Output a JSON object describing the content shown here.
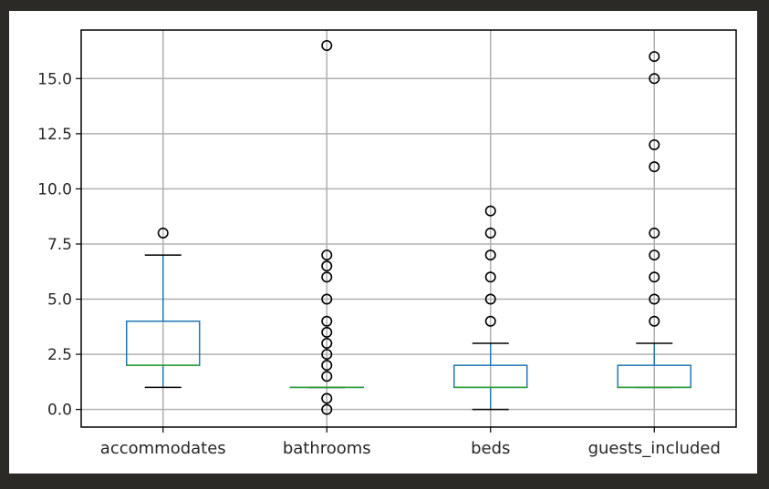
{
  "chart_data": {
    "type": "boxplot",
    "categories": [
      "accommodates",
      "bathrooms",
      "beds",
      "guests_included"
    ],
    "ylim": [
      -0.8,
      17.2
    ],
    "yticks": [
      "0.0",
      "2.5",
      "5.0",
      "7.5",
      "10.0",
      "12.5",
      "15.0"
    ],
    "grid": true,
    "colors": {
      "box": "#1f77b4",
      "median": "#2ca02c",
      "whisker": "#000000",
      "flier": "#000000",
      "grid": "#b0b0b0"
    },
    "boxes": [
      {
        "name": "accommodates",
        "whislo": 1,
        "q1": 2,
        "med": 2,
        "q3": 4,
        "whishi": 7,
        "fliers": [
          8
        ]
      },
      {
        "name": "bathrooms",
        "whislo": 1,
        "q1": 1,
        "med": 1,
        "q3": 1,
        "whishi": 1,
        "fliers": [
          0,
          0.5,
          1.5,
          2,
          2.5,
          3,
          3.5,
          4,
          5,
          6,
          6.5,
          7,
          16.5
        ]
      },
      {
        "name": "beds",
        "whislo": 0,
        "q1": 1,
        "med": 1,
        "q3": 2,
        "whishi": 3,
        "fliers": [
          4,
          5,
          6,
          7,
          8,
          9
        ]
      },
      {
        "name": "guests_included",
        "whislo": 1,
        "q1": 1,
        "med": 1,
        "q3": 2,
        "whishi": 3,
        "fliers": [
          4,
          5,
          6,
          7,
          8,
          11,
          12,
          15,
          16
        ]
      }
    ]
  }
}
